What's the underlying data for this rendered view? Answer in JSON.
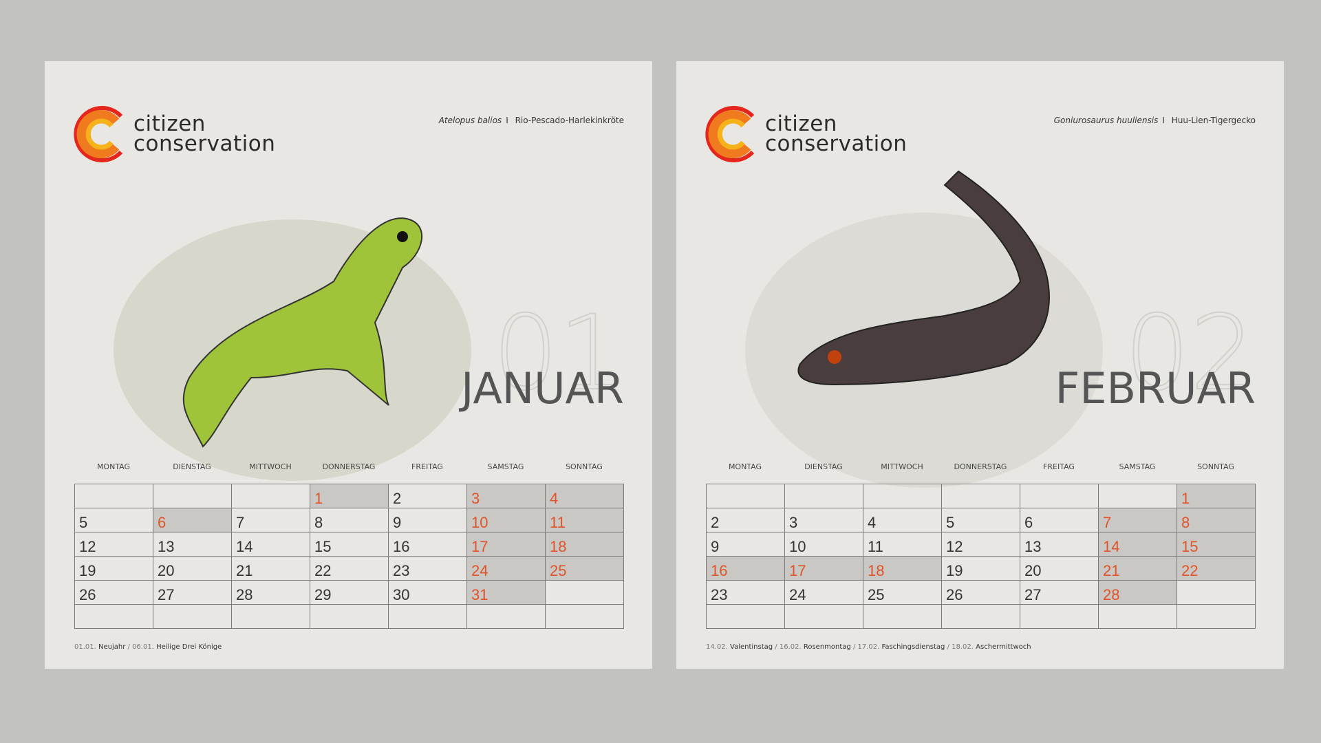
{
  "brand": {
    "line1": "citizen",
    "line2": "conservation",
    "colors": {
      "orange": "#e0542a",
      "red": "#e4261c",
      "yellow": "#f5b21b"
    }
  },
  "weekdays": [
    "MONTAG",
    "DIENSTAG",
    "MITTWOCH",
    "DONNERSTAG",
    "FREITAG",
    "SAMSTAG",
    "SONNTAG"
  ],
  "months": [
    {
      "number": "01",
      "name": "JANUAR",
      "species_latin": "Atelopus balios",
      "species_sep": "I",
      "species_common": "Rio-Pescado-Harlekinkröte",
      "weeks": [
        [
          {
            "d": ""
          },
          {
            "d": ""
          },
          {
            "d": ""
          },
          {
            "d": "1",
            "h": 1
          },
          {
            "d": "2"
          },
          {
            "d": "3",
            "h": 1
          },
          {
            "d": "4",
            "h": 1
          }
        ],
        [
          {
            "d": "5"
          },
          {
            "d": "6",
            "h": 1
          },
          {
            "d": "7"
          },
          {
            "d": "8"
          },
          {
            "d": "9"
          },
          {
            "d": "10",
            "h": 1
          },
          {
            "d": "11",
            "h": 1
          }
        ],
        [
          {
            "d": "12"
          },
          {
            "d": "13"
          },
          {
            "d": "14"
          },
          {
            "d": "15"
          },
          {
            "d": "16"
          },
          {
            "d": "17",
            "h": 1
          },
          {
            "d": "18",
            "h": 1
          }
        ],
        [
          {
            "d": "19"
          },
          {
            "d": "20"
          },
          {
            "d": "21"
          },
          {
            "d": "22"
          },
          {
            "d": "23"
          },
          {
            "d": "24",
            "h": 1
          },
          {
            "d": "25",
            "h": 1
          }
        ],
        [
          {
            "d": "26"
          },
          {
            "d": "27"
          },
          {
            "d": "28"
          },
          {
            "d": "29"
          },
          {
            "d": "30"
          },
          {
            "d": "31",
            "h": 1
          },
          {
            "d": ""
          }
        ],
        [
          {
            "d": ""
          },
          {
            "d": ""
          },
          {
            "d": ""
          },
          {
            "d": ""
          },
          {
            "d": ""
          },
          {
            "d": ""
          },
          {
            "d": ""
          }
        ]
      ],
      "holidays": [
        {
          "date": "01.01.",
          "name": "Neujahr"
        },
        {
          "date": "06.01.",
          "name": "Heilige Drei Könige"
        }
      ]
    },
    {
      "number": "02",
      "name": "FEBRUAR",
      "species_latin": "Goniurosaurus huuliensis",
      "species_sep": "I",
      "species_common": "Huu-Lien-Tigergecko",
      "weeks": [
        [
          {
            "d": ""
          },
          {
            "d": ""
          },
          {
            "d": ""
          },
          {
            "d": ""
          },
          {
            "d": ""
          },
          {
            "d": ""
          },
          {
            "d": "1",
            "h": 1
          }
        ],
        [
          {
            "d": "2"
          },
          {
            "d": "3"
          },
          {
            "d": "4"
          },
          {
            "d": "5"
          },
          {
            "d": "6"
          },
          {
            "d": "7",
            "h": 1
          },
          {
            "d": "8",
            "h": 1
          }
        ],
        [
          {
            "d": "9"
          },
          {
            "d": "10"
          },
          {
            "d": "11"
          },
          {
            "d": "12"
          },
          {
            "d": "13"
          },
          {
            "d": "14",
            "h": 1
          },
          {
            "d": "15",
            "h": 1
          }
        ],
        [
          {
            "d": "16",
            "h": 1
          },
          {
            "d": "17",
            "h": 1
          },
          {
            "d": "18",
            "h": 1
          },
          {
            "d": "19"
          },
          {
            "d": "20"
          },
          {
            "d": "21",
            "h": 1
          },
          {
            "d": "22",
            "h": 1
          }
        ],
        [
          {
            "d": "23"
          },
          {
            "d": "24"
          },
          {
            "d": "25"
          },
          {
            "d": "26"
          },
          {
            "d": "27"
          },
          {
            "d": "28",
            "h": 1
          },
          {
            "d": ""
          }
        ],
        [
          {
            "d": ""
          },
          {
            "d": ""
          },
          {
            "d": ""
          },
          {
            "d": ""
          },
          {
            "d": ""
          },
          {
            "d": ""
          },
          {
            "d": ""
          }
        ]
      ],
      "holidays": [
        {
          "date": "14.02.",
          "name": "Valentinstag"
        },
        {
          "date": "16.02.",
          "name": "Rosenmontag"
        },
        {
          "date": "17.02.",
          "name": "Faschingsdienstag"
        },
        {
          "date": "18.02.",
          "name": "Aschermittwoch"
        }
      ]
    }
  ]
}
